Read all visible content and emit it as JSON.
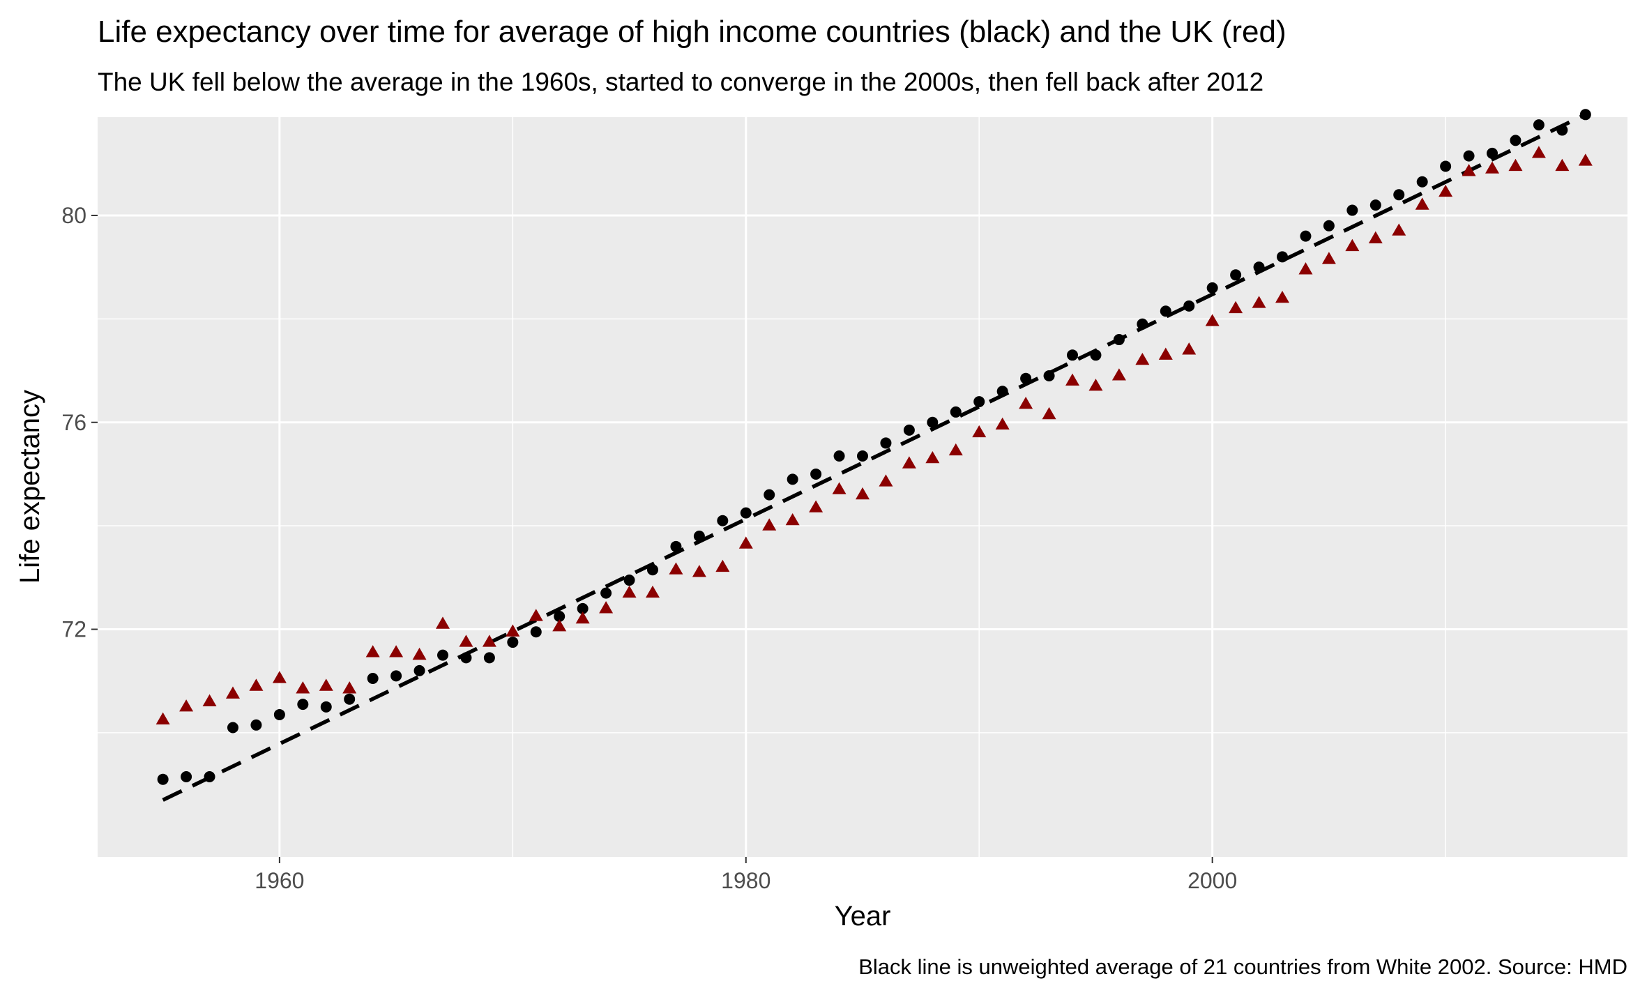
{
  "chart_data": {
    "type": "scatter",
    "title": "Life expectancy over time for average of high income countries (black) and the UK (red)",
    "subtitle": "The UK fell below the average in the 1960s, started to converge in the 2000s, then fell back after 2012",
    "xlabel": "Year",
    "ylabel": "Life expectancy",
    "caption": "Black line is unweighted average of 21 countries from White 2002. Source: HMD",
    "xlim": [
      1952.2,
      2017.8
    ],
    "ylim": [
      67.6,
      81.9
    ],
    "x_ticks": [
      1960,
      1980,
      2000
    ],
    "y_ticks": [
      72,
      76,
      80
    ],
    "grid": true,
    "legend": "none",
    "background_color": "#ebebeb",
    "grid_color": "#ffffff",
    "series": [
      {
        "marker": "circle",
        "color": "#000000",
        "points": [
          [
            1955,
            69.1
          ],
          [
            1956,
            69.15
          ],
          [
            1957,
            69.15
          ],
          [
            1958,
            70.1
          ],
          [
            1959,
            70.15
          ],
          [
            1960,
            70.35
          ],
          [
            1961,
            70.55
          ],
          [
            1962,
            70.5
          ],
          [
            1963,
            70.65
          ],
          [
            1964,
            71.05
          ],
          [
            1965,
            71.1
          ],
          [
            1966,
            71.2
          ],
          [
            1967,
            71.5
          ],
          [
            1968,
            71.45
          ],
          [
            1969,
            71.45
          ],
          [
            1970,
            71.75
          ],
          [
            1971,
            71.95
          ],
          [
            1972,
            72.25
          ],
          [
            1973,
            72.4
          ],
          [
            1974,
            72.7
          ],
          [
            1975,
            72.95
          ],
          [
            1976,
            73.15
          ],
          [
            1977,
            73.6
          ],
          [
            1978,
            73.8
          ],
          [
            1979,
            74.1
          ],
          [
            1980,
            74.25
          ],
          [
            1981,
            74.6
          ],
          [
            1982,
            74.9
          ],
          [
            1983,
            75.0
          ],
          [
            1984,
            75.35
          ],
          [
            1985,
            75.35
          ],
          [
            1986,
            75.6
          ],
          [
            1987,
            75.85
          ],
          [
            1988,
            76.0
          ],
          [
            1989,
            76.2
          ],
          [
            1990,
            76.4
          ],
          [
            1991,
            76.6
          ],
          [
            1992,
            76.85
          ],
          [
            1993,
            76.9
          ],
          [
            1994,
            77.3
          ],
          [
            1995,
            77.3
          ],
          [
            1996,
            77.6
          ],
          [
            1997,
            77.9
          ],
          [
            1998,
            78.15
          ],
          [
            1999,
            78.25
          ],
          [
            2000,
            78.6
          ],
          [
            2001,
            78.85
          ],
          [
            2002,
            79.0
          ],
          [
            2003,
            79.2
          ],
          [
            2004,
            79.6
          ],
          [
            2005,
            79.8
          ],
          [
            2006,
            80.1
          ],
          [
            2007,
            80.2
          ],
          [
            2008,
            80.4
          ],
          [
            2009,
            80.65
          ],
          [
            2010,
            80.95
          ],
          [
            2011,
            81.15
          ],
          [
            2012,
            81.2
          ],
          [
            2013,
            81.45
          ],
          [
            2014,
            81.75
          ],
          [
            2015,
            81.65
          ],
          [
            2016,
            81.95
          ]
        ]
      },
      {
        "marker": "triangle",
        "color": "#8b0000",
        "points": [
          [
            1955,
            70.25
          ],
          [
            1956,
            70.5
          ],
          [
            1957,
            70.6
          ],
          [
            1958,
            70.75
          ],
          [
            1959,
            70.9
          ],
          [
            1960,
            71.05
          ],
          [
            1961,
            70.85
          ],
          [
            1962,
            70.9
          ],
          [
            1963,
            70.85
          ],
          [
            1964,
            71.55
          ],
          [
            1965,
            71.55
          ],
          [
            1966,
            71.5
          ],
          [
            1967,
            72.1
          ],
          [
            1968,
            71.75
          ],
          [
            1969,
            71.75
          ],
          [
            1970,
            71.95
          ],
          [
            1971,
            72.25
          ],
          [
            1972,
            72.05
          ],
          [
            1973,
            72.2
          ],
          [
            1974,
            72.4
          ],
          [
            1975,
            72.7
          ],
          [
            1976,
            72.7
          ],
          [
            1977,
            73.15
          ],
          [
            1978,
            73.1
          ],
          [
            1979,
            73.2
          ],
          [
            1980,
            73.65
          ],
          [
            1981,
            74.0
          ],
          [
            1982,
            74.1
          ],
          [
            1983,
            74.35
          ],
          [
            1984,
            74.7
          ],
          [
            1985,
            74.6
          ],
          [
            1986,
            74.85
          ],
          [
            1987,
            75.2
          ],
          [
            1988,
            75.3
          ],
          [
            1989,
            75.45
          ],
          [
            1990,
            75.8
          ],
          [
            1991,
            75.95
          ],
          [
            1992,
            76.35
          ],
          [
            1993,
            76.15
          ],
          [
            1994,
            76.8
          ],
          [
            1995,
            76.7
          ],
          [
            1996,
            76.9
          ],
          [
            1997,
            77.2
          ],
          [
            1998,
            77.3
          ],
          [
            1999,
            77.4
          ],
          [
            2000,
            77.95
          ],
          [
            2001,
            78.2
          ],
          [
            2002,
            78.3
          ],
          [
            2003,
            78.4
          ],
          [
            2004,
            78.95
          ],
          [
            2005,
            79.15
          ],
          [
            2006,
            79.4
          ],
          [
            2007,
            79.55
          ],
          [
            2008,
            79.7
          ],
          [
            2009,
            80.2
          ],
          [
            2010,
            80.45
          ],
          [
            2011,
            80.85
          ],
          [
            2012,
            80.9
          ],
          [
            2013,
            80.95
          ],
          [
            2014,
            81.2
          ],
          [
            2015,
            80.95
          ],
          [
            2016,
            81.05
          ]
        ]
      }
    ],
    "trend_line": {
      "style": "dashed",
      "color": "#000000",
      "x": [
        1955,
        2016
      ],
      "y": [
        68.7,
        81.95
      ]
    }
  }
}
